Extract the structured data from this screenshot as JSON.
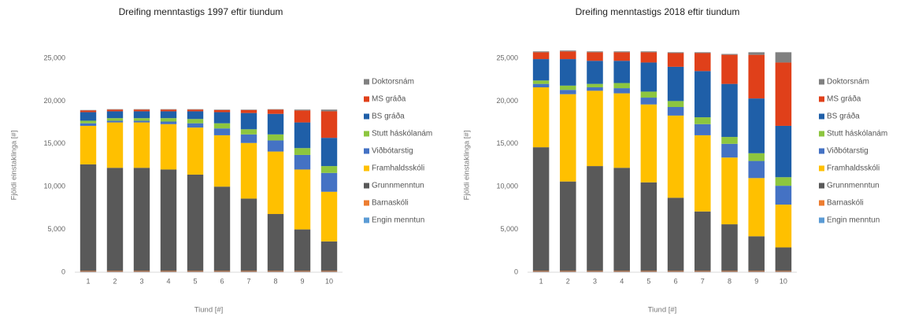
{
  "chart_data": [
    {
      "type": "bar",
      "stacked": true,
      "title": "Dreifing menntastigs 1997 eftir tiundum",
      "x_label": "Tiund [#]",
      "y_label": "Fjöldi einstaklinga [#]",
      "categories": [
        "1",
        "2",
        "3",
        "4",
        "5",
        "6",
        "7",
        "8",
        "9",
        "10"
      ],
      "ylim": [
        0,
        25000
      ],
      "yticks": [
        0,
        {
          "value": 5000,
          "label": "5,000"
        },
        {
          "value": 10000,
          "label": "10,000"
        },
        {
          "value": 15000,
          "label": "15,000"
        },
        {
          "value": 20000,
          "label": "20,000"
        },
        {
          "value": 25000,
          "label": "25,000"
        }
      ],
      "grid": false,
      "series": [
        {
          "name": "Engin menntun",
          "color": "#5b9bd5",
          "values": [
            50,
            50,
            50,
            50,
            50,
            50,
            50,
            50,
            50,
            50
          ]
        },
        {
          "name": "Barnaskóli",
          "color": "#ed7d31",
          "values": [
            100,
            100,
            100,
            100,
            100,
            100,
            100,
            100,
            100,
            100
          ]
        },
        {
          "name": "Grunnmenntun",
          "color": "#595959",
          "values": [
            12450,
            12050,
            12050,
            11850,
            11250,
            9850,
            8450,
            6650,
            4850,
            3450
          ]
        },
        {
          "name": "Framhaldsskóli",
          "color": "#ffc000",
          "values": [
            4500,
            5300,
            5300,
            5300,
            5500,
            6000,
            6500,
            7300,
            7000,
            5800
          ]
        },
        {
          "name": "Viðbótarstig",
          "color": "#4472c4",
          "values": [
            300,
            200,
            200,
            300,
            500,
            800,
            1000,
            1300,
            1700,
            2200
          ]
        },
        {
          "name": "Stutt háskólanám",
          "color": "#8dc63f",
          "values": [
            300,
            300,
            300,
            400,
            500,
            600,
            600,
            700,
            800,
            800
          ]
        },
        {
          "name": "BS gráða",
          "color": "#1f5fa8",
          "values": [
            1000,
            800,
            800,
            800,
            900,
            1300,
            1900,
            2400,
            3000,
            3300
          ]
        },
        {
          "name": "MS gráða",
          "color": "#e0401a",
          "values": [
            200,
            200,
            200,
            200,
            200,
            250,
            350,
            500,
            1400,
            3100
          ]
        },
        {
          "name": "Doktorsnám",
          "color": "#808080",
          "values": [
            50,
            50,
            50,
            50,
            50,
            50,
            50,
            50,
            100,
            200
          ]
        }
      ]
    },
    {
      "type": "bar",
      "stacked": true,
      "title": "Dreifing menntastigs 2018 eftir tiundum",
      "x_label": "Tiund [#]",
      "y_label": "Fjöldi einstaklinga [#]",
      "categories": [
        "1",
        "2",
        "3",
        "4",
        "5",
        "6",
        "7",
        "8",
        "9",
        "10"
      ],
      "ylim": [
        0,
        25000
      ],
      "yticks": [
        0,
        {
          "value": 5000,
          "label": "5,000"
        },
        {
          "value": 10000,
          "label": "10,000"
        },
        {
          "value": 15000,
          "label": "15,000"
        },
        {
          "value": 20000,
          "label": "20,000"
        },
        {
          "value": 25000,
          "label": "25,000"
        }
      ],
      "grid": false,
      "series": [
        {
          "name": "Engin menntun",
          "color": "#5b9bd5",
          "values": [
            50,
            50,
            50,
            50,
            50,
            50,
            50,
            50,
            50,
            50
          ]
        },
        {
          "name": "Barnaskóli",
          "color": "#ed7d31",
          "values": [
            100,
            100,
            100,
            100,
            100,
            100,
            100,
            100,
            100,
            100
          ]
        },
        {
          "name": "Grunnmenntun",
          "color": "#595959",
          "values": [
            14450,
            10450,
            12250,
            12050,
            10350,
            8550,
            6950,
            5450,
            4050,
            2750
          ]
        },
        {
          "name": "Framhaldsskóli",
          "color": "#ffc000",
          "values": [
            7000,
            10200,
            8800,
            8700,
            9100,
            9600,
            8900,
            7800,
            6800,
            5000
          ]
        },
        {
          "name": "Viðbótarstig",
          "color": "#4472c4",
          "values": [
            400,
            500,
            400,
            600,
            800,
            1000,
            1300,
            1600,
            2000,
            2200
          ]
        },
        {
          "name": "Stutt háskólanám",
          "color": "#8dc63f",
          "values": [
            400,
            500,
            400,
            600,
            700,
            700,
            800,
            800,
            900,
            1000
          ]
        },
        {
          "name": "BS gráða",
          "color": "#1f5fa8",
          "values": [
            2500,
            3100,
            2700,
            2600,
            3400,
            4000,
            5400,
            6200,
            6400,
            6000
          ]
        },
        {
          "name": "MS gráða",
          "color": "#e0401a",
          "values": [
            800,
            900,
            1000,
            1000,
            1200,
            1600,
            2100,
            3400,
            5100,
            7400
          ]
        },
        {
          "name": "Doktorsnám",
          "color": "#808080",
          "values": [
            100,
            100,
            100,
            100,
            100,
            100,
            100,
            100,
            300,
            1200
          ]
        }
      ]
    }
  ]
}
